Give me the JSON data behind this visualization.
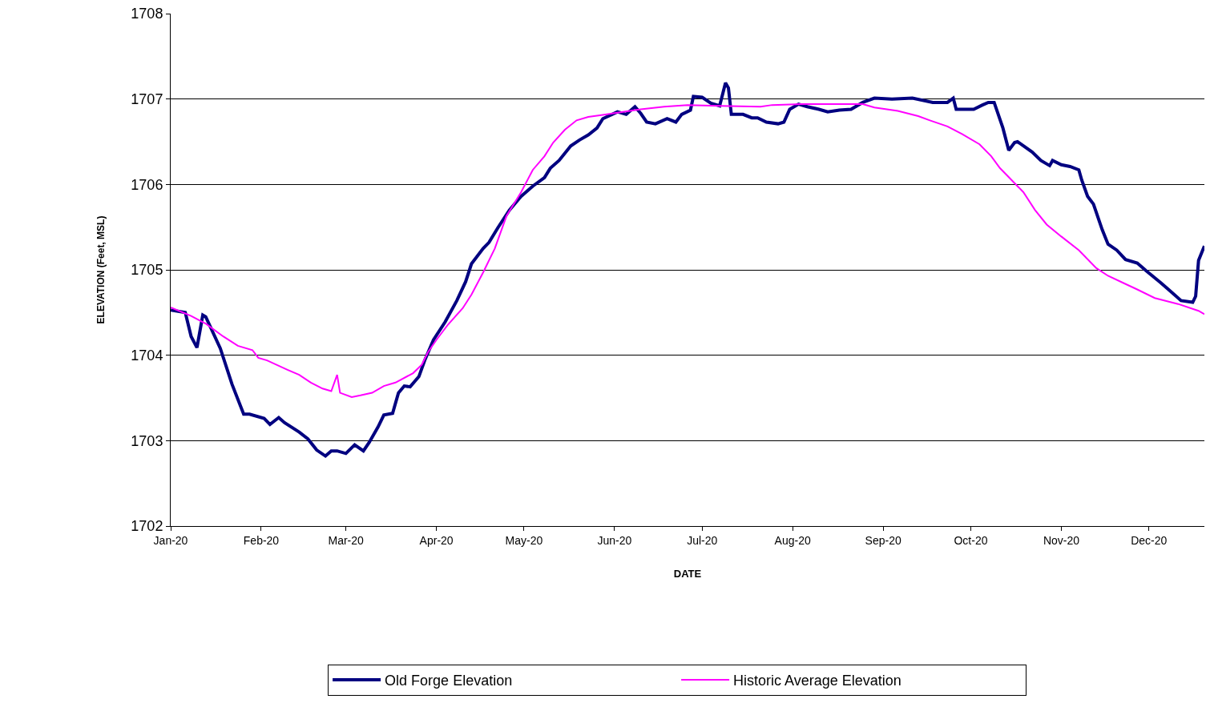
{
  "chart_data": {
    "type": "line",
    "xlabel": "DATE",
    "ylabel": "ELEVATION (Feet, MSL)",
    "xlim": [
      "2020-01-01",
      "2020-12-20"
    ],
    "xticks": [
      {
        "value": "2020-01-01",
        "label": "Jan-20"
      },
      {
        "value": "2020-02-01",
        "label": "Feb-20"
      },
      {
        "value": "2020-03-01",
        "label": "Mar-20"
      },
      {
        "value": "2020-04-01",
        "label": "Apr-20"
      },
      {
        "value": "2020-05-01",
        "label": "May-20"
      },
      {
        "value": "2020-06-01",
        "label": "Jun-20"
      },
      {
        "value": "2020-07-01",
        "label": "Jul-20"
      },
      {
        "value": "2020-08-01",
        "label": "Aug-20"
      },
      {
        "value": "2020-09-01",
        "label": "Sep-20"
      },
      {
        "value": "2020-10-01",
        "label": "Oct-20"
      },
      {
        "value": "2020-11-01",
        "label": "Nov-20"
      },
      {
        "value": "2020-12-01",
        "label": "Dec-20"
      }
    ],
    "ylim": [
      1702,
      1708
    ],
    "yticks": [
      1702,
      1703,
      1704,
      1705,
      1706,
      1707,
      1708
    ],
    "grid": "y",
    "legend": "bottom",
    "marker": "none",
    "line_style": "solid",
    "series": [
      {
        "name": "Old Forge Elevation",
        "color": "#000080",
        "x": [
          "2020-01-01",
          "2020-01-06",
          "2020-01-08",
          "2020-01-10",
          "2020-01-12",
          "2020-01-13",
          "2020-01-18",
          "2020-01-22",
          "2020-01-26",
          "2020-01-28",
          "2020-02-02",
          "2020-02-04",
          "2020-02-07",
          "2020-02-09",
          "2020-02-14",
          "2020-02-17",
          "2020-02-20",
          "2020-02-23",
          "2020-02-25",
          "2020-02-27",
          "2020-03-01",
          "2020-03-04",
          "2020-03-07",
          "2020-03-09",
          "2020-03-12",
          "2020-03-14",
          "2020-03-17",
          "2020-03-19",
          "2020-03-21",
          "2020-03-23",
          "2020-03-26",
          "2020-03-28",
          "2020-03-31",
          "2020-04-04",
          "2020-04-08",
          "2020-04-11",
          "2020-04-13",
          "2020-04-17",
          "2020-04-19",
          "2020-04-22",
          "2020-04-26",
          "2020-04-30",
          "2020-05-04",
          "2020-05-08",
          "2020-05-10",
          "2020-05-13",
          "2020-05-17",
          "2020-05-20",
          "2020-05-23",
          "2020-05-26",
          "2020-05-28",
          "2020-06-02",
          "2020-06-05",
          "2020-06-08",
          "2020-06-10",
          "2020-06-12",
          "2020-06-15",
          "2020-06-19",
          "2020-06-22",
          "2020-06-24",
          "2020-06-27",
          "2020-06-28",
          "2020-07-01",
          "2020-07-04",
          "2020-07-07",
          "2020-07-09",
          "2020-07-10",
          "2020-07-11",
          "2020-07-15",
          "2020-07-18",
          "2020-07-20",
          "2020-07-23",
          "2020-07-27",
          "2020-07-29",
          "2020-07-31",
          "2020-08-03",
          "2020-08-06",
          "2020-08-10",
          "2020-08-13",
          "2020-08-17",
          "2020-08-21",
          "2020-08-25",
          "2020-08-29",
          "2020-09-04",
          "2020-09-11",
          "2020-09-18",
          "2020-09-23",
          "2020-09-25",
          "2020-09-26",
          "2020-10-02",
          "2020-10-05",
          "2020-10-07",
          "2020-10-09",
          "2020-10-12",
          "2020-10-14",
          "2020-10-16",
          "2020-10-17",
          "2020-10-22",
          "2020-10-25",
          "2020-10-28",
          "2020-10-29",
          "2020-11-01",
          "2020-11-04",
          "2020-11-07",
          "2020-11-08",
          "2020-11-10",
          "2020-11-12",
          "2020-11-15",
          "2020-11-17",
          "2020-11-20",
          "2020-11-23",
          "2020-11-27",
          "2020-11-30",
          "2020-12-05",
          "2020-12-08",
          "2020-12-12",
          "2020-12-16",
          "2020-12-17",
          "2020-12-18",
          "2020-12-20"
        ],
        "values": [
          1704.53,
          1704.5,
          1704.22,
          1704.09,
          1704.47,
          1704.45,
          1704.08,
          1703.66,
          1703.31,
          1703.31,
          1703.26,
          1703.19,
          1703.27,
          1703.21,
          1703.1,
          1703.02,
          1702.89,
          1702.82,
          1702.88,
          1702.88,
          1702.85,
          1702.95,
          1702.88,
          1702.98,
          1703.16,
          1703.3,
          1703.32,
          1703.56,
          1703.64,
          1703.63,
          1703.75,
          1703.94,
          1704.18,
          1704.39,
          1704.64,
          1704.86,
          1705.07,
          1705.25,
          1705.32,
          1705.49,
          1705.7,
          1705.86,
          1705.98,
          1706.08,
          1706.19,
          1706.28,
          1706.45,
          1706.52,
          1706.58,
          1706.66,
          1706.77,
          1706.85,
          1706.82,
          1706.91,
          1706.83,
          1706.73,
          1706.71,
          1706.77,
          1706.73,
          1706.82,
          1706.87,
          1707.03,
          1707.02,
          1706.95,
          1706.92,
          1707.19,
          1707.13,
          1706.82,
          1706.82,
          1706.78,
          1706.78,
          1706.73,
          1706.71,
          1706.73,
          1706.88,
          1706.94,
          1706.91,
          1706.88,
          1706.85,
          1706.87,
          1706.88,
          1706.96,
          1707.01,
          1707.0,
          1707.01,
          1706.96,
          1706.96,
          1707.01,
          1706.88,
          1706.88,
          1706.93,
          1706.96,
          1706.96,
          1706.66,
          1706.4,
          1706.49,
          1706.5,
          1706.38,
          1706.28,
          1706.22,
          1706.28,
          1706.23,
          1706.21,
          1706.17,
          1706.05,
          1705.86,
          1705.77,
          1705.47,
          1705.3,
          1705.23,
          1705.12,
          1705.08,
          1704.99,
          1704.85,
          1704.76,
          1704.64,
          1704.62,
          1704.69,
          1705.11,
          1705.28
        ]
      },
      {
        "name": "Historic Average Elevation",
        "color": "#ff00ff",
        "x": [
          "2020-01-01",
          "2020-01-08",
          "2020-01-13",
          "2020-01-19",
          "2020-01-24",
          "2020-01-29",
          "2020-01-31",
          "2020-02-03",
          "2020-02-10",
          "2020-02-14",
          "2020-02-18",
          "2020-02-22",
          "2020-02-25",
          "2020-02-27",
          "2020-02-28",
          "2020-03-03",
          "2020-03-06",
          "2020-03-10",
          "2020-03-14",
          "2020-03-18",
          "2020-03-24",
          "2020-03-27",
          "2020-03-29",
          "2020-04-01",
          "2020-04-05",
          "2020-04-10",
          "2020-04-13",
          "2020-04-17",
          "2020-04-21",
          "2020-04-25",
          "2020-04-30",
          "2020-05-04",
          "2020-05-08",
          "2020-05-11",
          "2020-05-15",
          "2020-05-19",
          "2020-05-23",
          "2020-05-27",
          "2020-06-02",
          "2020-06-10",
          "2020-06-18",
          "2020-06-26",
          "2020-07-07",
          "2020-07-21",
          "2020-07-25",
          "2020-08-04",
          "2020-08-15",
          "2020-08-25",
          "2020-08-29",
          "2020-09-06",
          "2020-09-13",
          "2020-09-17",
          "2020-09-23",
          "2020-09-28",
          "2020-10-04",
          "2020-10-08",
          "2020-10-11",
          "2020-10-15",
          "2020-10-19",
          "2020-10-23",
          "2020-10-27",
          "2020-11-01",
          "2020-11-07",
          "2020-11-13",
          "2020-11-17",
          "2020-11-22",
          "2020-11-27",
          "2020-12-03",
          "2020-12-11",
          "2020-12-18",
          "2020-12-20"
        ],
        "values": [
          1704.56,
          1704.46,
          1704.37,
          1704.22,
          1704.11,
          1704.06,
          1703.97,
          1703.94,
          1703.83,
          1703.77,
          1703.68,
          1703.61,
          1703.58,
          1703.77,
          1703.56,
          1703.51,
          1703.53,
          1703.56,
          1703.64,
          1703.68,
          1703.79,
          1703.89,
          1704.03,
          1704.18,
          1704.36,
          1704.55,
          1704.71,
          1704.97,
          1705.25,
          1705.63,
          1705.91,
          1706.17,
          1706.33,
          1706.49,
          1706.64,
          1706.75,
          1706.79,
          1706.81,
          1706.84,
          1706.88,
          1706.91,
          1706.93,
          1706.92,
          1706.91,
          1706.93,
          1706.94,
          1706.94,
          1706.94,
          1706.9,
          1706.86,
          1706.8,
          1706.75,
          1706.68,
          1706.59,
          1706.47,
          1706.33,
          1706.19,
          1706.05,
          1705.91,
          1705.7,
          1705.53,
          1705.39,
          1705.23,
          1705.02,
          1704.93,
          1704.85,
          1704.77,
          1704.67,
          1704.6,
          1704.52,
          1704.48
        ]
      }
    ]
  }
}
